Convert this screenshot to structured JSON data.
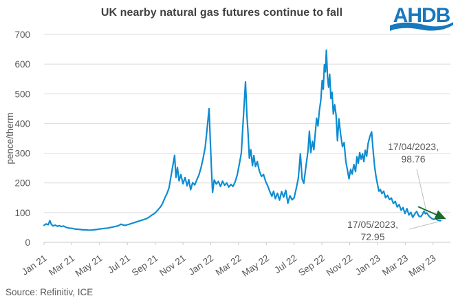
{
  "header": {
    "title": "UK nearby natural gas futures continue to fall",
    "logo": {
      "text": "AHDB",
      "color": "#1878BE"
    }
  },
  "footer": {
    "source": "Source: Refinitiv, ICE"
  },
  "chart_data": {
    "type": "line",
    "title": "UK nearby natural gas futures continue to fall",
    "xlabel": "",
    "ylabel": "pence/therm",
    "ylim": [
      0,
      700
    ],
    "y_ticks": [
      0,
      100,
      200,
      300,
      400,
      500,
      600,
      700
    ],
    "x_ticks": [
      {
        "label": "Jan 21",
        "month": 0
      },
      {
        "label": "Mar 21",
        "month": 2
      },
      {
        "label": "May 21",
        "month": 4
      },
      {
        "label": "Jul 21",
        "month": 6
      },
      {
        "label": "Sep 21",
        "month": 8
      },
      {
        "label": "Nov 21",
        "month": 10
      },
      {
        "label": "Jan 22",
        "month": 12
      },
      {
        "label": "Mar 22",
        "month": 14
      },
      {
        "label": "May 22",
        "month": 16
      },
      {
        "label": "Jul 22",
        "month": 18
      },
      {
        "label": "Sep 22",
        "month": 20
      },
      {
        "label": "Nov 22",
        "month": 22
      },
      {
        "label": "Jan 23",
        "month": 24
      },
      {
        "label": "Mar 23",
        "month": 26
      },
      {
        "label": "May 23",
        "month": 28
      }
    ],
    "x_domain_months": [
      0,
      29.25
    ],
    "grid": "horizontal",
    "legend": "none",
    "line_color": "#0E8CD1",
    "series": [
      {
        "name": "UK nearby natural gas futures",
        "unit": "pence/therm",
        "points": [
          [
            0.0,
            57
          ],
          [
            0.15,
            62
          ],
          [
            0.3,
            59
          ],
          [
            0.42,
            73
          ],
          [
            0.52,
            61
          ],
          [
            0.65,
            55
          ],
          [
            0.8,
            58
          ],
          [
            0.95,
            54
          ],
          [
            1.1,
            56
          ],
          [
            1.25,
            53
          ],
          [
            1.4,
            55
          ],
          [
            1.6,
            50
          ],
          [
            1.8,
            48
          ],
          [
            2.0,
            47
          ],
          [
            2.2,
            45
          ],
          [
            2.4,
            44
          ],
          [
            2.6,
            43
          ],
          [
            2.8,
            42
          ],
          [
            3.0,
            42
          ],
          [
            3.2,
            41
          ],
          [
            3.4,
            41
          ],
          [
            3.6,
            42
          ],
          [
            3.8,
            43
          ],
          [
            4.0,
            45
          ],
          [
            4.2,
            46
          ],
          [
            4.4,
            47
          ],
          [
            4.6,
            48
          ],
          [
            4.8,
            50
          ],
          [
            5.0,
            52
          ],
          [
            5.2,
            54
          ],
          [
            5.4,
            57
          ],
          [
            5.55,
            61
          ],
          [
            5.7,
            58
          ],
          [
            5.85,
            57
          ],
          [
            6.0,
            59
          ],
          [
            6.2,
            62
          ],
          [
            6.4,
            65
          ],
          [
            6.6,
            68
          ],
          [
            6.8,
            71
          ],
          [
            7.0,
            74
          ],
          [
            7.2,
            77
          ],
          [
            7.4,
            80
          ],
          [
            7.6,
            86
          ],
          [
            7.8,
            93
          ],
          [
            7.95,
            97
          ],
          [
            8.1,
            104
          ],
          [
            8.25,
            112
          ],
          [
            8.4,
            120
          ],
          [
            8.55,
            133
          ],
          [
            8.7,
            150
          ],
          [
            8.85,
            164
          ],
          [
            9.0,
            183
          ],
          [
            9.15,
            226
          ],
          [
            9.28,
            260
          ],
          [
            9.4,
            293
          ],
          [
            9.5,
            218
          ],
          [
            9.6,
            252
          ],
          [
            9.72,
            207
          ],
          [
            9.85,
            228
          ],
          [
            10.0,
            197
          ],
          [
            10.15,
            218
          ],
          [
            10.3,
            190
          ],
          [
            10.42,
            211
          ],
          [
            10.55,
            177
          ],
          [
            10.7,
            201
          ],
          [
            10.85,
            193
          ],
          [
            11.0,
            211
          ],
          [
            11.15,
            227
          ],
          [
            11.3,
            251
          ],
          [
            11.45,
            282
          ],
          [
            11.6,
            320
          ],
          [
            11.75,
            388
          ],
          [
            11.88,
            450
          ],
          [
            11.97,
            338
          ],
          [
            12.05,
            246
          ],
          [
            12.13,
            168
          ],
          [
            12.25,
            210
          ],
          [
            12.4,
            196
          ],
          [
            12.55,
            205
          ],
          [
            12.7,
            188
          ],
          [
            12.85,
            206
          ],
          [
            13.0,
            192
          ],
          [
            13.15,
            200
          ],
          [
            13.3,
            186
          ],
          [
            13.45,
            195
          ],
          [
            13.6,
            188
          ],
          [
            13.75,
            203
          ],
          [
            13.9,
            226
          ],
          [
            14.05,
            262
          ],
          [
            14.2,
            300
          ],
          [
            14.35,
            420
          ],
          [
            14.5,
            540
          ],
          [
            14.6,
            430
          ],
          [
            14.68,
            372
          ],
          [
            14.78,
            283
          ],
          [
            14.88,
            312
          ],
          [
            15.0,
            258
          ],
          [
            15.1,
            292
          ],
          [
            15.22,
            255
          ],
          [
            15.35,
            272
          ],
          [
            15.5,
            240
          ],
          [
            15.65,
            222
          ],
          [
            15.8,
            228
          ],
          [
            15.95,
            205
          ],
          [
            16.1,
            190
          ],
          [
            16.25,
            171
          ],
          [
            16.4,
            155
          ],
          [
            16.52,
            172
          ],
          [
            16.65,
            147
          ],
          [
            16.8,
            165
          ],
          [
            16.95,
            142
          ],
          [
            17.1,
            171
          ],
          [
            17.25,
            152
          ],
          [
            17.4,
            175
          ],
          [
            17.55,
            132
          ],
          [
            17.7,
            157
          ],
          [
            17.85,
            143
          ],
          [
            18.0,
            150
          ],
          [
            18.15,
            180
          ],
          [
            18.3,
            216
          ],
          [
            18.45,
            298
          ],
          [
            18.58,
            212
          ],
          [
            18.7,
            199
          ],
          [
            18.85,
            256
          ],
          [
            19.0,
            308
          ],
          [
            19.1,
            374
          ],
          [
            19.2,
            302
          ],
          [
            19.32,
            340
          ],
          [
            19.42,
            312
          ],
          [
            19.52,
            366
          ],
          [
            19.62,
            418
          ],
          [
            19.72,
            392
          ],
          [
            19.82,
            446
          ],
          [
            19.92,
            478
          ],
          [
            20.02,
            545
          ],
          [
            20.1,
            515
          ],
          [
            20.18,
            598
          ],
          [
            20.25,
            574
          ],
          [
            20.32,
            647
          ],
          [
            20.4,
            560
          ],
          [
            20.48,
            522
          ],
          [
            20.56,
            566
          ],
          [
            20.65,
            484
          ],
          [
            20.73,
            505
          ],
          [
            20.82,
            432
          ],
          [
            20.92,
            463
          ],
          [
            21.02,
            428
          ],
          [
            21.12,
            342
          ],
          [
            21.22,
            416
          ],
          [
            21.35,
            362
          ],
          [
            21.48,
            322
          ],
          [
            21.6,
            336
          ],
          [
            21.72,
            272
          ],
          [
            21.85,
            240
          ],
          [
            21.95,
            214
          ],
          [
            22.07,
            246
          ],
          [
            22.18,
            230
          ],
          [
            22.3,
            262
          ],
          [
            22.42,
            238
          ],
          [
            22.52,
            288
          ],
          [
            22.62,
            266
          ],
          [
            22.72,
            302
          ],
          [
            22.82,
            280
          ],
          [
            22.92,
            298
          ],
          [
            23.02,
            272
          ],
          [
            23.12,
            310
          ],
          [
            23.22,
            290
          ],
          [
            23.32,
            332
          ],
          [
            23.45,
            356
          ],
          [
            23.58,
            372
          ],
          [
            23.7,
            300
          ],
          [
            23.8,
            252
          ],
          [
            23.9,
            220
          ],
          [
            24.0,
            196
          ],
          [
            24.1,
            172
          ],
          [
            24.2,
            178
          ],
          [
            24.32,
            164
          ],
          [
            24.45,
            172
          ],
          [
            24.58,
            150
          ],
          [
            24.72,
            158
          ],
          [
            24.86,
            144
          ],
          [
            25.0,
            149
          ],
          [
            25.14,
            131
          ],
          [
            25.28,
            138
          ],
          [
            25.42,
            119
          ],
          [
            25.56,
            127
          ],
          [
            25.7,
            108
          ],
          [
            25.84,
            117
          ],
          [
            25.98,
            97
          ],
          [
            26.12,
            113
          ],
          [
            26.26,
            92
          ],
          [
            26.4,
            101
          ],
          [
            26.54,
            84
          ],
          [
            26.68,
            95
          ],
          [
            26.82,
            104
          ],
          [
            26.96,
            89
          ],
          [
            27.1,
            86
          ],
          [
            27.22,
            93
          ],
          [
            27.35,
            105
          ],
          [
            27.45,
            96
          ],
          [
            27.55,
            98.76
          ],
          [
            27.68,
            90
          ],
          [
            27.8,
            84
          ],
          [
            27.92,
            80
          ],
          [
            28.05,
            77
          ],
          [
            28.18,
            80
          ],
          [
            28.3,
            75
          ],
          [
            28.42,
            74
          ],
          [
            28.53,
            72.95
          ]
        ]
      }
    ],
    "annotations": [
      {
        "line1": "17/04/2023,",
        "line2": "98.76",
        "month": 27.55,
        "value": 98.76
      },
      {
        "line1": "17/05/2023,",
        "line2": "72.95",
        "month": 28.53,
        "value": 72.95
      }
    ],
    "trend_arrow": {
      "from": {
        "month": 26.93,
        "value": 120
      },
      "to": {
        "month": 28.81,
        "value": 81
      },
      "color": "#1A6B2F"
    }
  }
}
